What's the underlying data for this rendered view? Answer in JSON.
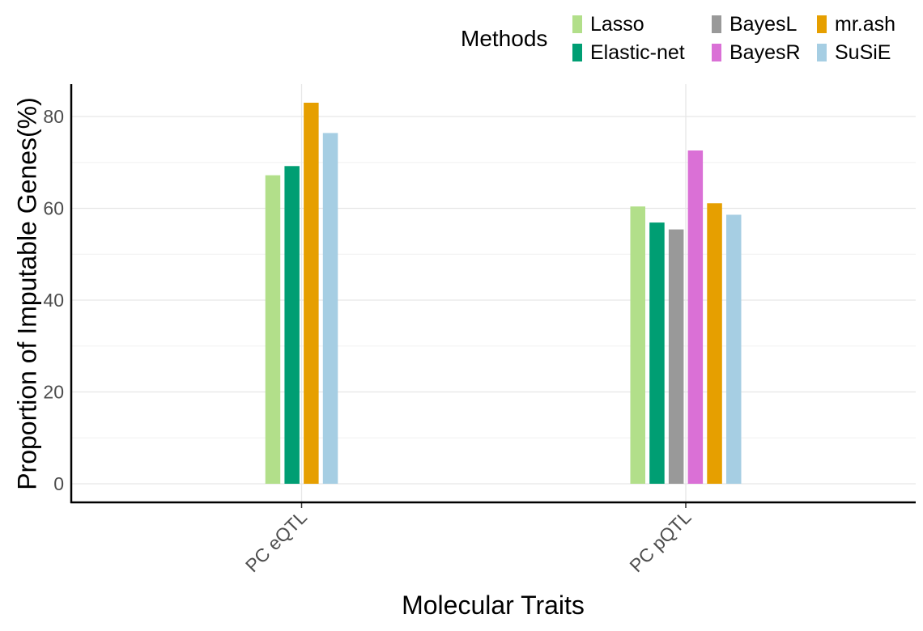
{
  "chart_data": {
    "type": "bar",
    "xlabel": "Molecular Traits",
    "ylabel": "Proportion of Imputable Genes(%)",
    "legend_title": "Methods",
    "legend_position": "top-right",
    "categories": [
      "PC eQTL",
      "PC pQTL"
    ],
    "y_ticks": [
      "0",
      "20",
      "40",
      "60",
      "80"
    ],
    "ylim": [
      0,
      87
    ],
    "grid": true,
    "series": [
      {
        "name": "Lasso",
        "color": "#b2df8a",
        "values": [
          67.2,
          60.4
        ]
      },
      {
        "name": "Elastic-net",
        "color": "#009e73",
        "values": [
          69.2,
          56.9
        ]
      },
      {
        "name": "BayesL",
        "color": "#999999",
        "values": [
          null,
          55.4
        ]
      },
      {
        "name": "BayesR",
        "color": "#da70d6",
        "values": [
          null,
          72.6
        ]
      },
      {
        "name": "mr.ash",
        "color": "#e69f00",
        "values": [
          83.0,
          61.1
        ]
      },
      {
        "name": "SuSiE",
        "color": "#a6cee3",
        "values": [
          76.4,
          58.6
        ]
      }
    ]
  }
}
